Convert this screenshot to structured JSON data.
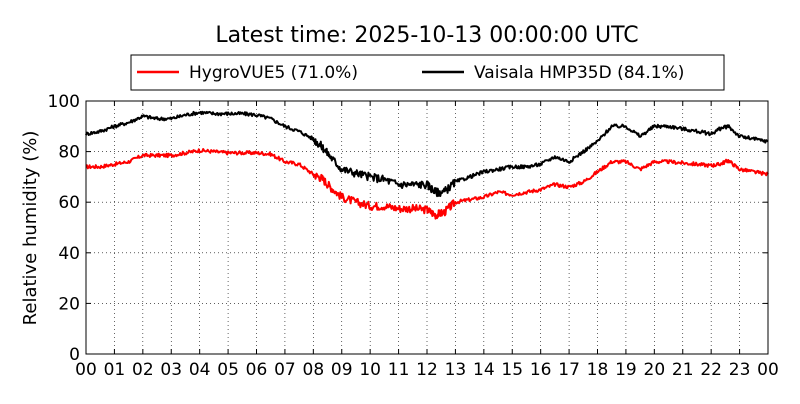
{
  "chart_data": {
    "type": "line",
    "title": "Latest time: 2025-10-13 00:00:00 UTC",
    "xlabel": "",
    "ylabel": "Relative humidity (%)",
    "xlim": [
      0,
      24
    ],
    "ylim": [
      0,
      100
    ],
    "x_tick_labels": [
      "00",
      "01",
      "02",
      "03",
      "04",
      "05",
      "06",
      "07",
      "08",
      "09",
      "10",
      "11",
      "12",
      "13",
      "14",
      "15",
      "16",
      "17",
      "18",
      "19",
      "20",
      "21",
      "22",
      "23",
      "00"
    ],
    "y_tick_labels": [
      "0",
      "20",
      "40",
      "60",
      "80",
      "100"
    ],
    "y_ticks": [
      0,
      20,
      40,
      60,
      80,
      100
    ],
    "grid": true,
    "legend_position": "top",
    "x_unit": "hour of day (UTC)",
    "series": [
      {
        "name": "HygroVUE5",
        "legend_label": "HygroVUE5 (71.0%)",
        "color": "#ff0000",
        "x": [
          0,
          0.5,
          1,
          1.5,
          2,
          2.5,
          3,
          3.5,
          4,
          4.5,
          5,
          5.5,
          6,
          6.5,
          7,
          7.5,
          8,
          8.3,
          8.6,
          9,
          9.5,
          10,
          10.5,
          11,
          11.5,
          12,
          12.3,
          12.6,
          13,
          13.5,
          14,
          14.5,
          15,
          15.5,
          16,
          16.5,
          17,
          17.5,
          18,
          18.5,
          19,
          19.5,
          20,
          20.5,
          21,
          21.5,
          22,
          22.3,
          22.6,
          23,
          23.5,
          24
        ],
        "y": [
          74,
          74,
          75,
          76,
          78.5,
          78.5,
          78.5,
          79.5,
          80.5,
          80,
          79.5,
          79.5,
          79.5,
          79,
          76,
          75,
          71,
          69.5,
          66,
          62,
          60,
          58.5,
          58.5,
          57.5,
          57.5,
          57,
          55,
          56,
          60,
          61,
          62,
          64,
          63,
          64,
          65,
          67,
          66,
          68,
          72,
          76,
          76,
          73,
          76,
          76,
          75.5,
          75,
          74.5,
          75,
          76.5,
          73,
          72,
          71
        ]
      },
      {
        "name": "Vaisala HMP35D",
        "legend_label": "Vaisala HMP35D (84.1%)",
        "color": "#000000",
        "x": [
          0,
          0.5,
          1,
          1.5,
          2,
          2.5,
          3,
          3.5,
          4,
          4.5,
          5,
          5.5,
          6,
          6.5,
          7,
          7.5,
          8,
          8.3,
          8.6,
          9,
          9.5,
          10,
          10.5,
          11,
          11.5,
          12,
          12.3,
          12.6,
          13,
          13.5,
          14,
          14.5,
          15,
          15.5,
          16,
          16.5,
          17,
          17.5,
          18,
          18.5,
          19,
          19.5,
          20,
          20.5,
          21,
          21.5,
          22,
          22.3,
          22.6,
          23,
          23.5,
          24
        ],
        "y": [
          87,
          88,
          90,
          91.5,
          94,
          93,
          93,
          94.5,
          95.5,
          95,
          95,
          95,
          94.5,
          93,
          90,
          88,
          85,
          82,
          78,
          73,
          71.5,
          70,
          69,
          67,
          67,
          67,
          64,
          64,
          68,
          70,
          72,
          73,
          74,
          74,
          75,
          78,
          76,
          80,
          84,
          90,
          90,
          86,
          90,
          90,
          89,
          88,
          87,
          89,
          90,
          86,
          85,
          84
        ]
      }
    ]
  }
}
